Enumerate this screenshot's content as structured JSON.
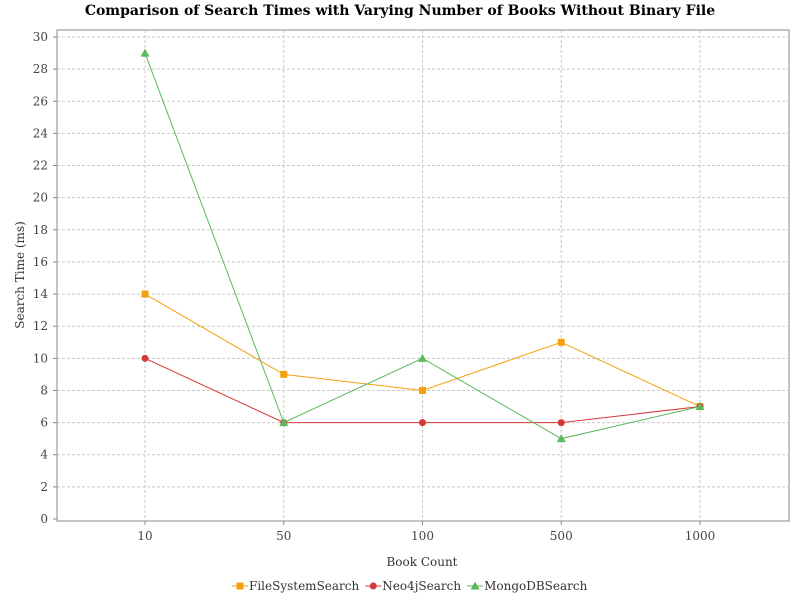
{
  "chart_data": {
    "type": "line",
    "title": "Comparison of Search Times with Varying Number of Books Without Binary File",
    "xlabel": "Book Count",
    "ylabel": "Search Time (ms)",
    "categories": [
      "10",
      "50",
      "100",
      "500",
      "1000"
    ],
    "ylim": [
      0,
      30
    ],
    "yticks": [
      0,
      2,
      4,
      6,
      8,
      10,
      12,
      14,
      16,
      18,
      20,
      22,
      24,
      26,
      28,
      30
    ],
    "grid": true,
    "legend_position": "bottom",
    "series": [
      {
        "name": "FileSystemSearch",
        "color": "#f5a00f",
        "marker": "square",
        "values": [
          14,
          9,
          8,
          11,
          7
        ]
      },
      {
        "name": "Neo4jSearch",
        "color": "#d63838",
        "marker": "circle",
        "values": [
          10,
          6,
          6,
          6,
          7
        ]
      },
      {
        "name": "MongoDBSearch",
        "color": "#5cb85c",
        "marker": "triangle",
        "values": [
          29,
          6,
          10,
          5,
          7
        ]
      }
    ]
  }
}
